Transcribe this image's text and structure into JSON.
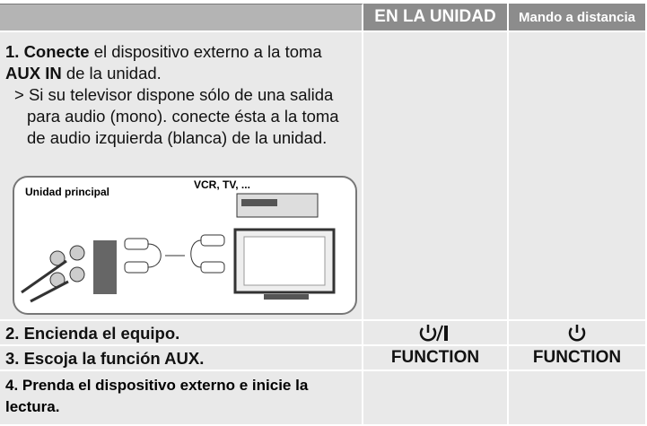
{
  "header": {
    "columns": [
      "EN LA UNIDAD",
      "Mando a distancia"
    ]
  },
  "steps": [
    {
      "parts": [
        "1. Conecte",
        " el dispositivo externo a la toma ",
        "AUX IN",
        " de la unidad."
      ],
      "note": "> Si su televisor dispone sólo de una salida para audio (mono). conecte ésta a la toma de audio izquierda (blanca) de la unidad.",
      "diagram": {
        "labels": [
          "Unidad principal",
          "VCR, TV, ..."
        ]
      }
    },
    {
      "text": "2. Encienda el equipo."
    },
    {
      "text": "3. Escoja la función AUX.",
      "unit": "FUNCTION",
      "remote": "FUNCTION"
    },
    {
      "text": "4. Prenda el dispositivo externo e inicie la lectura."
    }
  ]
}
